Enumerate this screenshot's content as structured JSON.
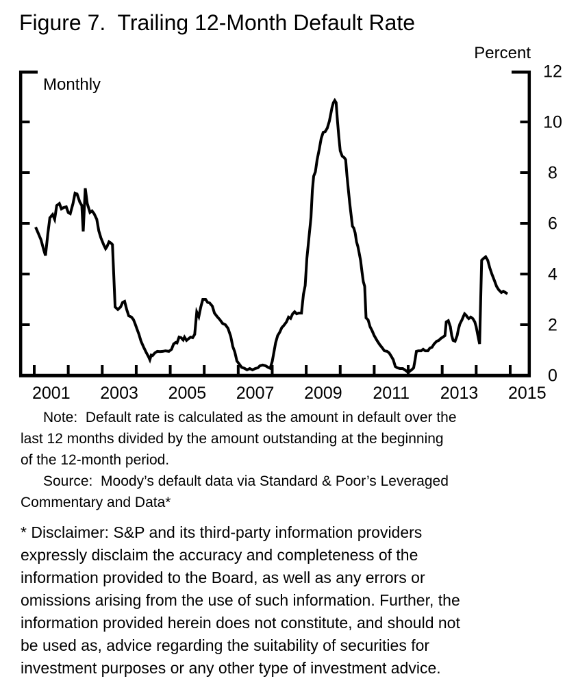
{
  "colors": {
    "ink": "#000000",
    "background": "#ffffff"
  },
  "figure": {
    "title": "Figure 7.  Trailing 12-Month Default Rate",
    "unit_label": "Percent",
    "frequency_label": "Monthly"
  },
  "note": {
    "note_text": "Note:  Default rate is calculated as the amount in default over the\nlast 12 months divided by the amount outstanding at the beginning\nof the 12-month period.",
    "source_text": "Source:  Moody’s default data via Standard & Poor’s Leveraged\nCommentary and Data*"
  },
  "disclaimer": {
    "text": "* Disclaimer: S&P and its third-party information providers\nexpressly disclaim the accuracy and completeness of the\ninformation provided to the Board, as well as any errors or\nomissions arising from the use of such information. Further, the\ninformation provided herein does not constitute, and should not\nbe used as, advice regarding the suitability of securities for\ninvestment purposes or any other type of investment advice.",
    "marker": "*"
  },
  "chart_data": {
    "type": "line",
    "title": "Figure 7. Trailing 12-Month Default Rate",
    "xlabel": "",
    "ylabel": "Percent",
    "frequency": "Monthly",
    "grid": false,
    "legend_position": "none",
    "xlim": [
      2000.6,
      2015.6
    ],
    "ylim": [
      0,
      12
    ],
    "x_ticks": [
      2001,
      2002,
      2003,
      2004,
      2005,
      2006,
      2007,
      2008,
      2009,
      2010,
      2011,
      2012,
      2013,
      2014,
      2015
    ],
    "x_tick_labels": [
      "2001",
      "2003",
      "2005",
      "2007",
      "2009",
      "2011",
      "2013",
      "2015"
    ],
    "y_ticks": [
      0,
      2,
      4,
      6,
      8,
      10,
      12
    ],
    "series": [
      {
        "name": "Trailing 12-month default rate (percent)",
        "points": [
          [
            2001.04,
            5.85
          ],
          [
            2001.12,
            5.6
          ],
          [
            2001.2,
            5.35
          ],
          [
            2001.28,
            4.95
          ],
          [
            2001.33,
            4.73
          ],
          [
            2001.4,
            5.6
          ],
          [
            2001.46,
            6.22
          ],
          [
            2001.54,
            6.35
          ],
          [
            2001.6,
            6.16
          ],
          [
            2001.66,
            6.7
          ],
          [
            2001.74,
            6.78
          ],
          [
            2001.8,
            6.57
          ],
          [
            2001.86,
            6.62
          ],
          [
            2001.94,
            6.65
          ],
          [
            2002.0,
            6.43
          ],
          [
            2002.06,
            6.38
          ],
          [
            2002.14,
            6.78
          ],
          [
            2002.2,
            7.19
          ],
          [
            2002.26,
            7.16
          ],
          [
            2002.34,
            6.84
          ],
          [
            2002.4,
            6.7
          ],
          [
            2002.44,
            5.68
          ],
          [
            2002.5,
            7.38
          ],
          [
            2002.56,
            6.78
          ],
          [
            2002.64,
            6.43
          ],
          [
            2002.7,
            6.49
          ],
          [
            2002.76,
            6.38
          ],
          [
            2002.84,
            6.16
          ],
          [
            2002.9,
            5.7
          ],
          [
            2002.96,
            5.43
          ],
          [
            2003.04,
            5.16
          ],
          [
            2003.1,
            5.0
          ],
          [
            2003.14,
            5.08
          ],
          [
            2003.2,
            5.27
          ],
          [
            2003.26,
            5.22
          ],
          [
            2003.3,
            5.16
          ],
          [
            2003.38,
            2.7
          ],
          [
            2003.46,
            2.6
          ],
          [
            2003.54,
            2.7
          ],
          [
            2003.6,
            2.88
          ],
          [
            2003.66,
            2.92
          ],
          [
            2003.72,
            2.6
          ],
          [
            2003.78,
            2.35
          ],
          [
            2003.86,
            2.3
          ],
          [
            2003.92,
            2.2
          ],
          [
            2003.97,
            2.03
          ],
          [
            2004.02,
            1.84
          ],
          [
            2004.08,
            1.62
          ],
          [
            2004.14,
            1.35
          ],
          [
            2004.22,
            1.11
          ],
          [
            2004.3,
            0.89
          ],
          [
            2004.36,
            0.74
          ],
          [
            2004.4,
            0.62
          ],
          [
            2004.44,
            0.8
          ],
          [
            2004.48,
            0.78
          ],
          [
            2004.55,
            0.89
          ],
          [
            2004.62,
            0.95
          ],
          [
            2004.7,
            0.94
          ],
          [
            2004.78,
            0.95
          ],
          [
            2004.86,
            0.97
          ],
          [
            2004.96,
            0.95
          ],
          [
            2005.04,
            1.03
          ],
          [
            2005.1,
            1.24
          ],
          [
            2005.16,
            1.3
          ],
          [
            2005.2,
            1.28
          ],
          [
            2005.26,
            1.51
          ],
          [
            2005.32,
            1.49
          ],
          [
            2005.38,
            1.4
          ],
          [
            2005.42,
            1.51
          ],
          [
            2005.48,
            1.38
          ],
          [
            2005.54,
            1.45
          ],
          [
            2005.6,
            1.51
          ],
          [
            2005.66,
            1.49
          ],
          [
            2005.72,
            1.62
          ],
          [
            2005.78,
            2.5
          ],
          [
            2005.84,
            2.32
          ],
          [
            2005.9,
            2.7
          ],
          [
            2005.96,
            3.0
          ],
          [
            2006.04,
            3.0
          ],
          [
            2006.1,
            2.88
          ],
          [
            2006.16,
            2.86
          ],
          [
            2006.24,
            2.73
          ],
          [
            2006.3,
            2.46
          ],
          [
            2006.38,
            2.32
          ],
          [
            2006.46,
            2.2
          ],
          [
            2006.54,
            2.05
          ],
          [
            2006.62,
            2.0
          ],
          [
            2006.7,
            1.86
          ],
          [
            2006.78,
            1.54
          ],
          [
            2006.84,
            1.14
          ],
          [
            2006.9,
            0.92
          ],
          [
            2006.96,
            0.57
          ],
          [
            2007.04,
            0.43
          ],
          [
            2007.1,
            0.32
          ],
          [
            2007.18,
            0.28
          ],
          [
            2007.26,
            0.22
          ],
          [
            2007.34,
            0.27
          ],
          [
            2007.42,
            0.22
          ],
          [
            2007.5,
            0.27
          ],
          [
            2007.58,
            0.3
          ],
          [
            2007.64,
            0.38
          ],
          [
            2007.72,
            0.41
          ],
          [
            2007.8,
            0.38
          ],
          [
            2007.88,
            0.32
          ],
          [
            2007.94,
            0.28
          ],
          [
            2008.0,
            0.55
          ],
          [
            2008.05,
            0.92
          ],
          [
            2008.1,
            1.28
          ],
          [
            2008.16,
            1.57
          ],
          [
            2008.22,
            1.7
          ],
          [
            2008.28,
            1.88
          ],
          [
            2008.34,
            1.97
          ],
          [
            2008.42,
            2.11
          ],
          [
            2008.48,
            2.3
          ],
          [
            2008.54,
            2.25
          ],
          [
            2008.6,
            2.43
          ],
          [
            2008.66,
            2.51
          ],
          [
            2008.72,
            2.43
          ],
          [
            2008.78,
            2.46
          ],
          [
            2008.86,
            2.46
          ],
          [
            2008.92,
            3.2
          ],
          [
            2008.97,
            3.54
          ],
          [
            2009.02,
            4.62
          ],
          [
            2009.06,
            5.16
          ],
          [
            2009.1,
            5.7
          ],
          [
            2009.14,
            6.24
          ],
          [
            2009.18,
            7.3
          ],
          [
            2009.22,
            7.86
          ],
          [
            2009.27,
            8.03
          ],
          [
            2009.32,
            8.5
          ],
          [
            2009.38,
            8.9
          ],
          [
            2009.44,
            9.35
          ],
          [
            2009.5,
            9.59
          ],
          [
            2009.56,
            9.62
          ],
          [
            2009.62,
            9.76
          ],
          [
            2009.68,
            10.03
          ],
          [
            2009.72,
            10.3
          ],
          [
            2009.76,
            10.57
          ],
          [
            2009.8,
            10.76
          ],
          [
            2009.84,
            10.85
          ],
          [
            2009.88,
            10.76
          ],
          [
            2009.92,
            10.03
          ],
          [
            2009.96,
            9.4
          ],
          [
            2010.0,
            8.86
          ],
          [
            2010.06,
            8.65
          ],
          [
            2010.12,
            8.59
          ],
          [
            2010.16,
            8.51
          ],
          [
            2010.2,
            7.86
          ],
          [
            2010.24,
            7.32
          ],
          [
            2010.28,
            6.78
          ],
          [
            2010.32,
            6.35
          ],
          [
            2010.36,
            5.89
          ],
          [
            2010.4,
            5.81
          ],
          [
            2010.44,
            5.62
          ],
          [
            2010.48,
            5.27
          ],
          [
            2010.52,
            5.08
          ],
          [
            2010.56,
            4.81
          ],
          [
            2010.6,
            4.54
          ],
          [
            2010.64,
            4.1
          ],
          [
            2010.68,
            3.7
          ],
          [
            2010.72,
            3.51
          ],
          [
            2010.76,
            2.27
          ],
          [
            2010.82,
            2.19
          ],
          [
            2010.88,
            1.92
          ],
          [
            2010.94,
            1.76
          ],
          [
            2011.0,
            1.57
          ],
          [
            2011.08,
            1.38
          ],
          [
            2011.16,
            1.22
          ],
          [
            2011.24,
            1.08
          ],
          [
            2011.3,
            0.97
          ],
          [
            2011.38,
            0.95
          ],
          [
            2011.44,
            0.89
          ],
          [
            2011.5,
            0.76
          ],
          [
            2011.56,
            0.62
          ],
          [
            2011.62,
            0.35
          ],
          [
            2011.68,
            0.3
          ],
          [
            2011.76,
            0.27
          ],
          [
            2011.84,
            0.27
          ],
          [
            2011.9,
            0.22
          ],
          [
            2011.96,
            0.16
          ],
          [
            2012.04,
            0.16
          ],
          [
            2012.1,
            0.22
          ],
          [
            2012.16,
            0.3
          ],
          [
            2012.2,
            0.6
          ],
          [
            2012.24,
            0.95
          ],
          [
            2012.3,
            0.97
          ],
          [
            2012.38,
            0.97
          ],
          [
            2012.44,
            1.03
          ],
          [
            2012.5,
            0.97
          ],
          [
            2012.58,
            0.97
          ],
          [
            2012.64,
            1.08
          ],
          [
            2012.7,
            1.11
          ],
          [
            2012.76,
            1.24
          ],
          [
            2012.84,
            1.35
          ],
          [
            2012.9,
            1.38
          ],
          [
            2012.96,
            1.46
          ],
          [
            2013.02,
            1.51
          ],
          [
            2013.08,
            1.57
          ],
          [
            2013.12,
            2.11
          ],
          [
            2013.18,
            2.16
          ],
          [
            2013.24,
            1.92
          ],
          [
            2013.28,
            1.57
          ],
          [
            2013.32,
            1.38
          ],
          [
            2013.38,
            1.35
          ],
          [
            2013.44,
            1.57
          ],
          [
            2013.48,
            1.84
          ],
          [
            2013.52,
            2.03
          ],
          [
            2013.58,
            2.19
          ],
          [
            2013.62,
            2.32
          ],
          [
            2013.66,
            2.43
          ],
          [
            2013.7,
            2.38
          ],
          [
            2013.74,
            2.3
          ],
          [
            2013.78,
            2.24
          ],
          [
            2013.84,
            2.3
          ],
          [
            2013.9,
            2.24
          ],
          [
            2013.96,
            2.11
          ],
          [
            2014.0,
            1.92
          ],
          [
            2014.05,
            1.57
          ],
          [
            2014.1,
            1.24
          ],
          [
            2014.16,
            4.54
          ],
          [
            2014.22,
            4.62
          ],
          [
            2014.28,
            4.68
          ],
          [
            2014.34,
            4.54
          ],
          [
            2014.4,
            4.24
          ],
          [
            2014.46,
            4.0
          ],
          [
            2014.54,
            3.73
          ],
          [
            2014.6,
            3.51
          ],
          [
            2014.66,
            3.38
          ],
          [
            2014.74,
            3.27
          ],
          [
            2014.8,
            3.32
          ],
          [
            2014.86,
            3.27
          ],
          [
            2014.92,
            3.22
          ]
        ]
      }
    ]
  }
}
